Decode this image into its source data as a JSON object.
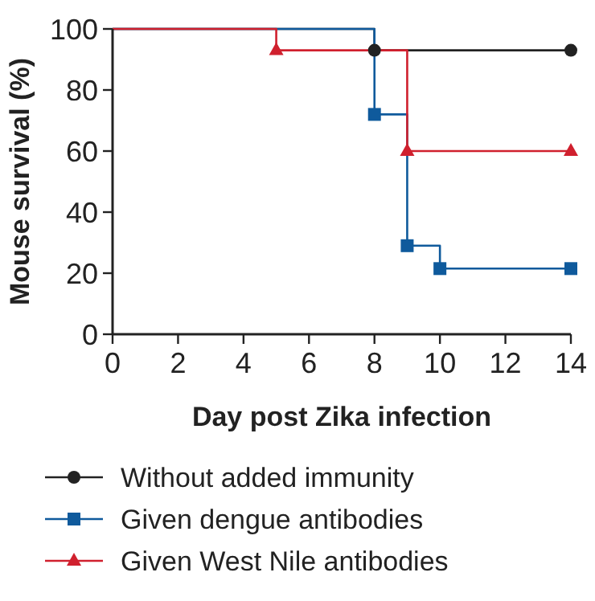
{
  "chart_data": {
    "type": "step",
    "xlabel": "Day post Zika infection",
    "ylabel": "Mouse survival (%)",
    "xlim": [
      0,
      14
    ],
    "xticks": [
      0,
      2,
      4,
      6,
      8,
      10,
      12,
      14
    ],
    "ylim": [
      0,
      100
    ],
    "yticks": [
      0,
      20,
      40,
      60,
      80,
      100
    ],
    "legend": "bottom",
    "grid": false,
    "series": [
      {
        "name": "Without added immunity",
        "color": "#222222",
        "marker": "circle",
        "x": [
          0,
          8,
          14
        ],
        "values": [
          100,
          93,
          93
        ]
      },
      {
        "name": "Given dengue antibodies",
        "color": "#0f5a9c",
        "marker": "square",
        "x": [
          0,
          8,
          9,
          10,
          14
        ],
        "values": [
          100,
          72,
          29,
          21.5,
          21.5
        ]
      },
      {
        "name": "Given West Nile antibodies",
        "color": "#d0202e",
        "marker": "triangle",
        "x": [
          0,
          5,
          9,
          14
        ],
        "values": [
          100,
          93,
          60,
          60
        ]
      }
    ]
  }
}
